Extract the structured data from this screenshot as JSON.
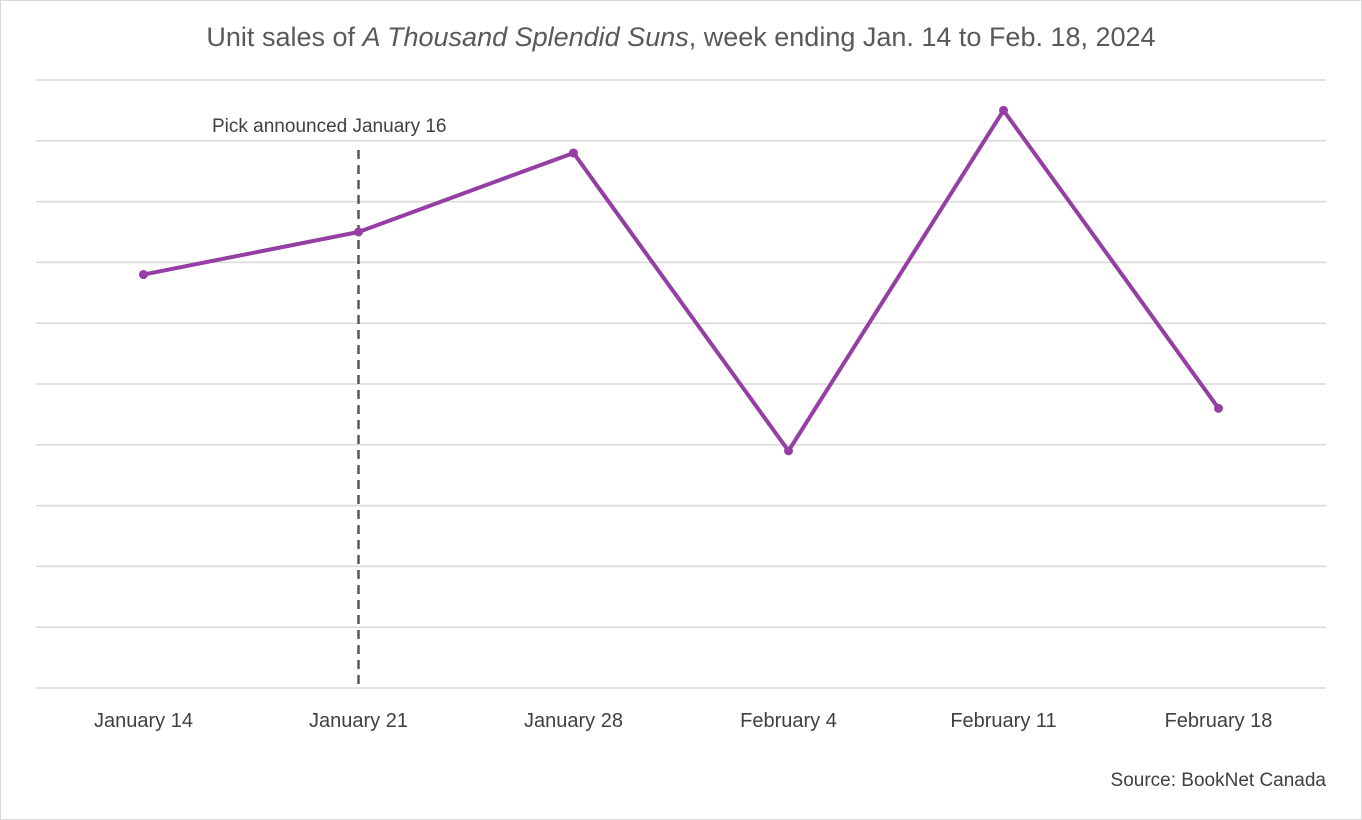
{
  "chart_data": {
    "type": "line",
    "title": {
      "prefix": "Unit sales of ",
      "italic": "A Thousand Splendid Suns",
      "suffix": ", week ending Jan. 14 to Feb. 18, 2024"
    },
    "categories": [
      "January 14",
      "January 21",
      "January 28",
      "February 4",
      "February 11",
      "February 18"
    ],
    "series": [
      {
        "values": [
          6.8,
          7.5,
          8.8,
          3.9,
          9.5,
          4.6
        ],
        "color": "#953ea3"
      }
    ],
    "ylim": [
      0,
      10
    ],
    "y_gridlines": 10,
    "y_tick_labels_shown": false,
    "grid": true,
    "legend": "none",
    "annotation": {
      "label": "Pick announced January 16",
      "at_category": "January 21",
      "line_style": "dashed",
      "color": "#595959"
    },
    "source": "Source: BookNet Canada",
    "colors": {
      "gridline": "#d9d9d9",
      "text": "#404040",
      "title": "#595959"
    }
  }
}
